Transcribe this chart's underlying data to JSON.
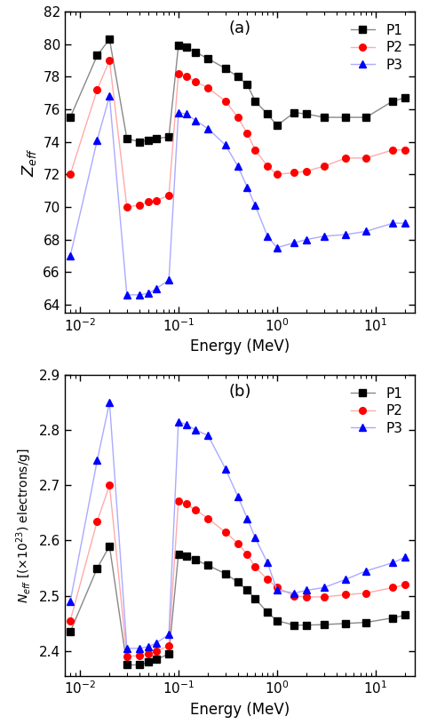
{
  "panel_a": {
    "label": "(a)",
    "ylabel": "$Z_{eff}$",
    "xlabel": "Energy (MeV)",
    "ylim": [
      63.5,
      82
    ],
    "yticks": [
      64,
      66,
      68,
      70,
      72,
      74,
      76,
      78,
      80,
      82
    ],
    "P1": {
      "color": "#444444",
      "line_color": "#888888",
      "marker": "s",
      "marker_color": "black",
      "x": [
        0.008,
        0.015,
        0.02,
        0.03,
        0.04,
        0.05,
        0.06,
        0.08,
        0.1,
        0.12,
        0.15,
        0.2,
        0.3,
        0.4,
        0.5,
        0.6,
        0.8,
        1.0,
        1.5,
        2.0,
        3.0,
        5.0,
        8.0,
        15.0,
        20.0
      ],
      "y": [
        75.5,
        79.3,
        80.3,
        74.2,
        74.0,
        74.1,
        74.2,
        74.3,
        79.9,
        79.8,
        79.5,
        79.1,
        78.5,
        78.0,
        77.5,
        76.5,
        75.7,
        75.0,
        75.8,
        75.7,
        75.5,
        75.5,
        75.5,
        76.5,
        76.7
      ]
    },
    "P2": {
      "color": "#ff6666",
      "line_color": "#ff8888",
      "marker": "o",
      "marker_color": "red",
      "x": [
        0.008,
        0.015,
        0.02,
        0.03,
        0.04,
        0.05,
        0.06,
        0.08,
        0.1,
        0.12,
        0.15,
        0.2,
        0.3,
        0.4,
        0.5,
        0.6,
        0.8,
        1.0,
        1.5,
        2.0,
        3.0,
        5.0,
        8.0,
        15.0,
        20.0
      ],
      "y": [
        72.0,
        77.2,
        79.0,
        70.0,
        70.1,
        70.3,
        70.4,
        70.7,
        78.2,
        78.0,
        77.7,
        77.3,
        76.5,
        75.5,
        74.5,
        73.5,
        72.5,
        72.0,
        72.1,
        72.2,
        72.5,
        73.0,
        73.0,
        73.5,
        73.5
      ]
    },
    "P3": {
      "color": "#6666ff",
      "line_color": "#8888ff",
      "marker": "^",
      "marker_color": "blue",
      "x": [
        0.008,
        0.015,
        0.02,
        0.03,
        0.04,
        0.05,
        0.06,
        0.08,
        0.1,
        0.12,
        0.15,
        0.2,
        0.3,
        0.4,
        0.5,
        0.6,
        0.8,
        1.0,
        1.5,
        2.0,
        3.0,
        5.0,
        8.0,
        15.0,
        20.0
      ],
      "y": [
        67.0,
        74.1,
        76.8,
        64.6,
        64.6,
        64.7,
        65.0,
        65.5,
        75.8,
        75.7,
        75.3,
        74.8,
        73.8,
        72.5,
        71.2,
        70.1,
        68.2,
        67.5,
        67.8,
        68.0,
        68.2,
        68.3,
        68.5,
        69.0,
        69.0
      ]
    }
  },
  "panel_b": {
    "label": "(b)",
    "ylabel": "$N_{eff}$ [($\\times$10$^{23}$) electrons/g]",
    "xlabel": "Energy (MeV)",
    "ylim": [
      2.355,
      2.9
    ],
    "yticks": [
      2.4,
      2.5,
      2.6,
      2.7,
      2.8,
      2.9
    ],
    "P1": {
      "color": "#444444",
      "line_color": "#888888",
      "marker": "s",
      "marker_color": "black",
      "x": [
        0.008,
        0.015,
        0.02,
        0.03,
        0.04,
        0.05,
        0.06,
        0.08,
        0.1,
        0.12,
        0.15,
        0.2,
        0.3,
        0.4,
        0.5,
        0.6,
        0.8,
        1.0,
        1.5,
        2.0,
        3.0,
        5.0,
        8.0,
        15.0,
        20.0
      ],
      "y": [
        2.435,
        2.55,
        2.59,
        2.375,
        2.375,
        2.38,
        2.385,
        2.395,
        2.575,
        2.572,
        2.565,
        2.555,
        2.54,
        2.525,
        2.51,
        2.495,
        2.47,
        2.455,
        2.447,
        2.447,
        2.448,
        2.45,
        2.452,
        2.46,
        2.465
      ]
    },
    "P2": {
      "color": "#ff6666",
      "line_color": "#ff8888",
      "marker": "o",
      "marker_color": "red",
      "x": [
        0.008,
        0.015,
        0.02,
        0.03,
        0.04,
        0.05,
        0.06,
        0.08,
        0.1,
        0.12,
        0.15,
        0.2,
        0.3,
        0.4,
        0.5,
        0.6,
        0.8,
        1.0,
        1.5,
        2.0,
        3.0,
        5.0,
        8.0,
        15.0,
        20.0
      ],
      "y": [
        2.455,
        2.635,
        2.7,
        2.39,
        2.392,
        2.395,
        2.4,
        2.41,
        2.672,
        2.666,
        2.655,
        2.64,
        2.615,
        2.595,
        2.575,
        2.552,
        2.53,
        2.515,
        2.5,
        2.498,
        2.498,
        2.502,
        2.505,
        2.515,
        2.52
      ]
    },
    "P3": {
      "color": "#6666ff",
      "line_color": "#8888ff",
      "marker": "^",
      "marker_color": "blue",
      "x": [
        0.008,
        0.015,
        0.02,
        0.03,
        0.04,
        0.05,
        0.06,
        0.08,
        0.1,
        0.12,
        0.15,
        0.2,
        0.3,
        0.4,
        0.5,
        0.6,
        0.8,
        1.0,
        1.5,
        2.0,
        3.0,
        5.0,
        8.0,
        15.0,
        20.0
      ],
      "y": [
        2.49,
        2.745,
        2.85,
        2.405,
        2.405,
        2.408,
        2.415,
        2.43,
        2.815,
        2.81,
        2.8,
        2.79,
        2.73,
        2.68,
        2.64,
        2.605,
        2.56,
        2.51,
        2.505,
        2.51,
        2.515,
        2.53,
        2.545,
        2.56,
        2.57
      ]
    }
  },
  "xlim": [
    0.007,
    25.0
  ],
  "background_color": "white"
}
